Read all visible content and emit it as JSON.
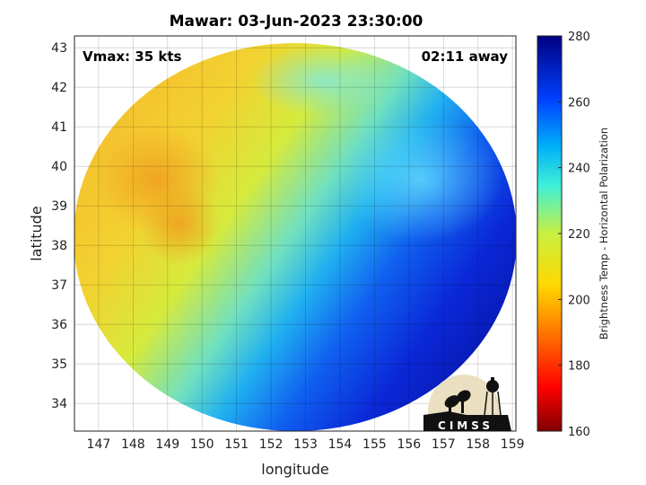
{
  "title": "Mawar: 03-Jun-2023 23:30:00",
  "annotations": {
    "vmax": "Vmax: 35 kts",
    "time_away": "02:11 away"
  },
  "logo_text": "CIMSS",
  "chart_data": {
    "type": "heatmap",
    "title": "Mawar: 03-Jun-2023 23:30:00",
    "xlabel": "longitude",
    "ylabel": "latitude",
    "xlim": [
      146.3,
      159.1
    ],
    "ylim": [
      33.3,
      43.3
    ],
    "xticks": [
      147,
      148,
      149,
      150,
      151,
      152,
      153,
      154,
      155,
      156,
      157,
      158,
      159
    ],
    "yticks": [
      34,
      35,
      36,
      37,
      38,
      39,
      40,
      41,
      42,
      43
    ],
    "grid": true,
    "swath_center": [
      152.8,
      38.2
    ],
    "swath_radius_deg": [
      6.2,
      5.0
    ],
    "colorbar": {
      "label": "Brightness Temp - Horizontal Polarization",
      "range": [
        160,
        280
      ],
      "ticks": [
        160,
        180,
        200,
        220,
        240,
        260,
        280
      ],
      "colormap": "jet_reversed"
    },
    "field_description_values": {
      "northwest_region_K": 200,
      "central_band_K": 235,
      "southeast_region_K": 268
    }
  }
}
